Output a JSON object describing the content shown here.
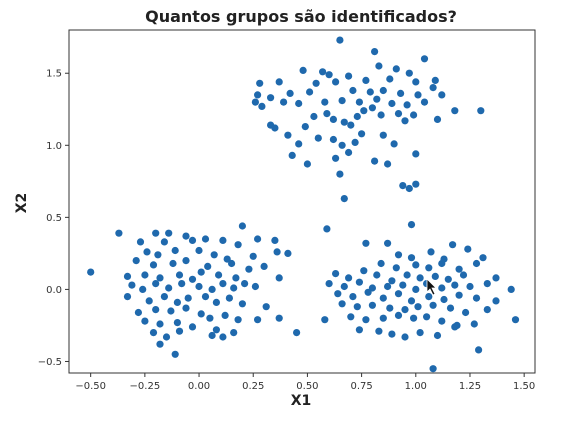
{
  "chart_data": {
    "type": "scatter",
    "title": "Quantos grupos são identificados?",
    "xlabel": "X1",
    "ylabel": "X2",
    "xlim": [
      -0.6,
      1.55
    ],
    "ylim": [
      -0.58,
      1.8
    ],
    "xticks": [
      -0.5,
      -0.25,
      0.0,
      0.25,
      0.5,
      0.75,
      1.0,
      1.25,
      1.5
    ],
    "xtick_labels": [
      "−0.50",
      "−0.25",
      "0.00",
      "0.25",
      "0.50",
      "0.75",
      "1.00",
      "1.25",
      "1.50"
    ],
    "yticks": [
      -0.5,
      0.0,
      0.5,
      1.0,
      1.5
    ],
    "ytick_labels": [
      "−0.5",
      "0.0",
      "0.5",
      "1.0",
      "1.5"
    ],
    "grid": false,
    "marker_color": "#1f69ad",
    "series": [
      {
        "points": [
          [
            0.65,
            1.73
          ],
          [
            0.81,
            1.65
          ],
          [
            1.04,
            1.6
          ],
          [
            0.48,
            1.52
          ],
          [
            0.57,
            1.51
          ],
          [
            0.6,
            1.49
          ],
          [
            0.69,
            1.48
          ],
          [
            0.83,
            1.55
          ],
          [
            0.91,
            1.53
          ],
          [
            0.97,
            1.5
          ],
          [
            1.09,
            1.45
          ],
          [
            0.28,
            1.43
          ],
          [
            0.37,
            1.44
          ],
          [
            0.54,
            1.43
          ],
          [
            0.63,
            1.44
          ],
          [
            0.77,
            1.45
          ],
          [
            0.88,
            1.46
          ],
          [
            1.0,
            1.44
          ],
          [
            1.08,
            1.4
          ],
          [
            0.27,
            1.35
          ],
          [
            0.33,
            1.33
          ],
          [
            0.42,
            1.36
          ],
          [
            0.51,
            1.37
          ],
          [
            0.71,
            1.38
          ],
          [
            0.79,
            1.37
          ],
          [
            0.85,
            1.38
          ],
          [
            0.93,
            1.36
          ],
          [
            1.01,
            1.35
          ],
          [
            1.04,
            1.3
          ],
          [
            1.12,
            1.35
          ],
          [
            0.26,
            1.3
          ],
          [
            0.29,
            1.27
          ],
          [
            0.39,
            1.3
          ],
          [
            0.46,
            1.29
          ],
          [
            0.58,
            1.3
          ],
          [
            0.66,
            1.31
          ],
          [
            0.74,
            1.3
          ],
          [
            0.82,
            1.32
          ],
          [
            0.89,
            1.29
          ],
          [
            0.96,
            1.28
          ],
          [
            1.18,
            1.24
          ],
          [
            1.3,
            1.24
          ],
          [
            0.33,
            1.14
          ],
          [
            0.35,
            1.12
          ],
          [
            0.41,
            1.07
          ],
          [
            0.49,
            1.13
          ],
          [
            0.53,
            1.2
          ],
          [
            0.59,
            1.22
          ],
          [
            0.62,
            1.18
          ],
          [
            0.67,
            1.16
          ],
          [
            0.7,
            1.14
          ],
          [
            0.73,
            1.2
          ],
          [
            0.76,
            1.24
          ],
          [
            0.8,
            1.26
          ],
          [
            0.84,
            1.21
          ],
          [
            0.92,
            1.22
          ],
          [
            0.95,
            1.17
          ],
          [
            0.99,
            1.21
          ],
          [
            1.1,
            1.18
          ],
          [
            0.46,
            1.01
          ],
          [
            0.55,
            1.05
          ],
          [
            0.62,
            1.04
          ],
          [
            0.66,
            1.0
          ],
          [
            0.72,
            1.02
          ],
          [
            0.75,
            1.08
          ],
          [
            0.85,
            1.07
          ],
          [
            0.9,
            1.01
          ],
          [
            0.43,
            0.93
          ],
          [
            0.5,
            0.87
          ],
          [
            0.63,
            0.91
          ],
          [
            0.69,
            0.95
          ],
          [
            0.81,
            0.89
          ],
          [
            0.87,
            0.87
          ],
          [
            1.0,
            0.94
          ],
          [
            0.65,
            0.8
          ],
          [
            0.94,
            0.72
          ],
          [
            0.97,
            0.7
          ],
          [
            1.0,
            0.73
          ],
          [
            0.67,
            0.63
          ],
          [
            0.2,
            0.44
          ],
          [
            -0.37,
            0.39
          ],
          [
            -0.2,
            0.39
          ],
          [
            -0.14,
            0.39
          ],
          [
            -0.06,
            0.37
          ],
          [
            -0.27,
            0.33
          ],
          [
            -0.16,
            0.33
          ],
          [
            -0.03,
            0.34
          ],
          [
            0.03,
            0.35
          ],
          [
            0.11,
            0.34
          ],
          [
            0.18,
            0.31
          ],
          [
            0.27,
            0.35
          ],
          [
            0.35,
            0.34
          ],
          [
            -0.24,
            0.26
          ],
          [
            -0.19,
            0.24
          ],
          [
            -0.11,
            0.27
          ],
          [
            0.0,
            0.27
          ],
          [
            0.07,
            0.24
          ],
          [
            0.13,
            0.21
          ],
          [
            0.25,
            0.23
          ],
          [
            0.36,
            0.26
          ],
          [
            0.41,
            0.25
          ],
          [
            -0.29,
            0.2
          ],
          [
            -0.21,
            0.17
          ],
          [
            -0.12,
            0.18
          ],
          [
            -0.06,
            0.2
          ],
          [
            0.04,
            0.16
          ],
          [
            0.15,
            0.18
          ],
          [
            0.23,
            0.14
          ],
          [
            0.3,
            0.16
          ],
          [
            -0.33,
            0.09
          ],
          [
            -0.25,
            0.1
          ],
          [
            -0.18,
            0.08
          ],
          [
            -0.09,
            0.1
          ],
          [
            -0.03,
            0.07
          ],
          [
            0.01,
            0.12
          ],
          [
            0.09,
            0.1
          ],
          [
            0.17,
            0.08
          ],
          [
            0.21,
            0.04
          ],
          [
            0.37,
            0.08
          ],
          [
            -0.5,
            0.12
          ],
          [
            -0.31,
            0.03
          ],
          [
            -0.26,
            0.0
          ],
          [
            -0.2,
            0.04
          ],
          [
            -0.14,
            0.01
          ],
          [
            -0.08,
            0.04
          ],
          [
            0.0,
            0.02
          ],
          [
            0.06,
            0.0
          ],
          [
            0.11,
            0.04
          ],
          [
            0.16,
            0.01
          ],
          [
            0.26,
            0.02
          ],
          [
            -0.33,
            -0.05
          ],
          [
            -0.23,
            -0.08
          ],
          [
            -0.16,
            -0.05
          ],
          [
            -0.1,
            -0.09
          ],
          [
            -0.05,
            -0.06
          ],
          [
            0.03,
            -0.05
          ],
          [
            0.08,
            -0.09
          ],
          [
            0.14,
            -0.06
          ],
          [
            0.2,
            -0.1
          ],
          [
            0.31,
            -0.12
          ],
          [
            -0.28,
            -0.16
          ],
          [
            -0.2,
            -0.14
          ],
          [
            -0.13,
            -0.15
          ],
          [
            -0.06,
            -0.13
          ],
          [
            0.01,
            -0.17
          ],
          [
            0.05,
            -0.2
          ],
          [
            0.12,
            -0.18
          ],
          [
            0.18,
            -0.21
          ],
          [
            -0.25,
            -0.22
          ],
          [
            -0.18,
            -0.24
          ],
          [
            -0.1,
            -0.23
          ],
          [
            -0.03,
            -0.26
          ],
          [
            0.08,
            -0.28
          ],
          [
            0.16,
            -0.3
          ],
          [
            0.27,
            -0.21
          ],
          [
            -0.21,
            -0.3
          ],
          [
            -0.15,
            -0.33
          ],
          [
            -0.09,
            -0.29
          ],
          [
            0.06,
            -0.32
          ],
          [
            0.11,
            -0.33
          ],
          [
            -0.18,
            -0.38
          ],
          [
            -0.11,
            -0.45
          ],
          [
            0.37,
            -0.2
          ],
          [
            0.45,
            -0.3
          ],
          [
            0.59,
            0.42
          ],
          [
            0.98,
            0.45
          ],
          [
            0.77,
            0.32
          ],
          [
            0.87,
            0.32
          ],
          [
            0.92,
            0.24
          ],
          [
            0.98,
            0.22
          ],
          [
            1.07,
            0.26
          ],
          [
            1.13,
            0.21
          ],
          [
            1.17,
            0.31
          ],
          [
            1.24,
            0.28
          ],
          [
            1.31,
            0.22
          ],
          [
            0.84,
            0.18
          ],
          [
            0.91,
            0.15
          ],
          [
            1.0,
            0.17
          ],
          [
            1.06,
            0.15
          ],
          [
            1.12,
            0.18
          ],
          [
            1.2,
            0.14
          ],
          [
            1.28,
            0.18
          ],
          [
            0.63,
            0.11
          ],
          [
            0.69,
            0.08
          ],
          [
            0.76,
            0.13
          ],
          [
            0.82,
            0.1
          ],
          [
            0.89,
            0.06
          ],
          [
            0.96,
            0.1
          ],
          [
            1.02,
            0.08
          ],
          [
            1.09,
            0.09
          ],
          [
            1.15,
            0.07
          ],
          [
            1.22,
            0.1
          ],
          [
            1.37,
            0.08
          ],
          [
            0.6,
            0.04
          ],
          [
            0.67,
            0.02
          ],
          [
            0.74,
            0.05
          ],
          [
            0.8,
            0.01
          ],
          [
            0.87,
            0.02
          ],
          [
            0.94,
            0.03
          ],
          [
            1.0,
            0.0
          ],
          [
            1.05,
            0.04
          ],
          [
            1.12,
            0.01
          ],
          [
            1.18,
            0.03
          ],
          [
            1.25,
            0.02
          ],
          [
            1.33,
            0.04
          ],
          [
            1.44,
            0.0
          ],
          [
            0.64,
            -0.03
          ],
          [
            0.71,
            -0.05
          ],
          [
            0.78,
            -0.02
          ],
          [
            0.85,
            -0.06
          ],
          [
            0.92,
            -0.03
          ],
          [
            0.98,
            -0.08
          ],
          [
            1.06,
            -0.05
          ],
          [
            1.13,
            -0.07
          ],
          [
            1.2,
            -0.04
          ],
          [
            1.28,
            -0.06
          ],
          [
            1.37,
            -0.08
          ],
          [
            0.66,
            -0.1
          ],
          [
            0.73,
            -0.12
          ],
          [
            0.8,
            -0.11
          ],
          [
            0.88,
            -0.13
          ],
          [
            0.95,
            -0.14
          ],
          [
            1.01,
            -0.12
          ],
          [
            1.08,
            -0.11
          ],
          [
            1.16,
            -0.13
          ],
          [
            1.23,
            -0.16
          ],
          [
            1.33,
            -0.14
          ],
          [
            0.7,
            -0.19
          ],
          [
            0.77,
            -0.21
          ],
          [
            0.85,
            -0.2
          ],
          [
            0.92,
            -0.18
          ],
          [
            0.99,
            -0.2
          ],
          [
            1.05,
            -0.19
          ],
          [
            1.12,
            -0.22
          ],
          [
            1.19,
            -0.25
          ],
          [
            1.27,
            -0.24
          ],
          [
            1.46,
            -0.21
          ],
          [
            0.58,
            -0.21
          ],
          [
            0.74,
            -0.28
          ],
          [
            0.83,
            -0.29
          ],
          [
            0.89,
            -0.31
          ],
          [
            0.95,
            -0.33
          ],
          [
            1.02,
            -0.3
          ],
          [
            1.1,
            -0.32
          ],
          [
            1.18,
            -0.26
          ],
          [
            1.29,
            -0.42
          ],
          [
            1.08,
            -0.55
          ]
        ]
      }
    ]
  }
}
